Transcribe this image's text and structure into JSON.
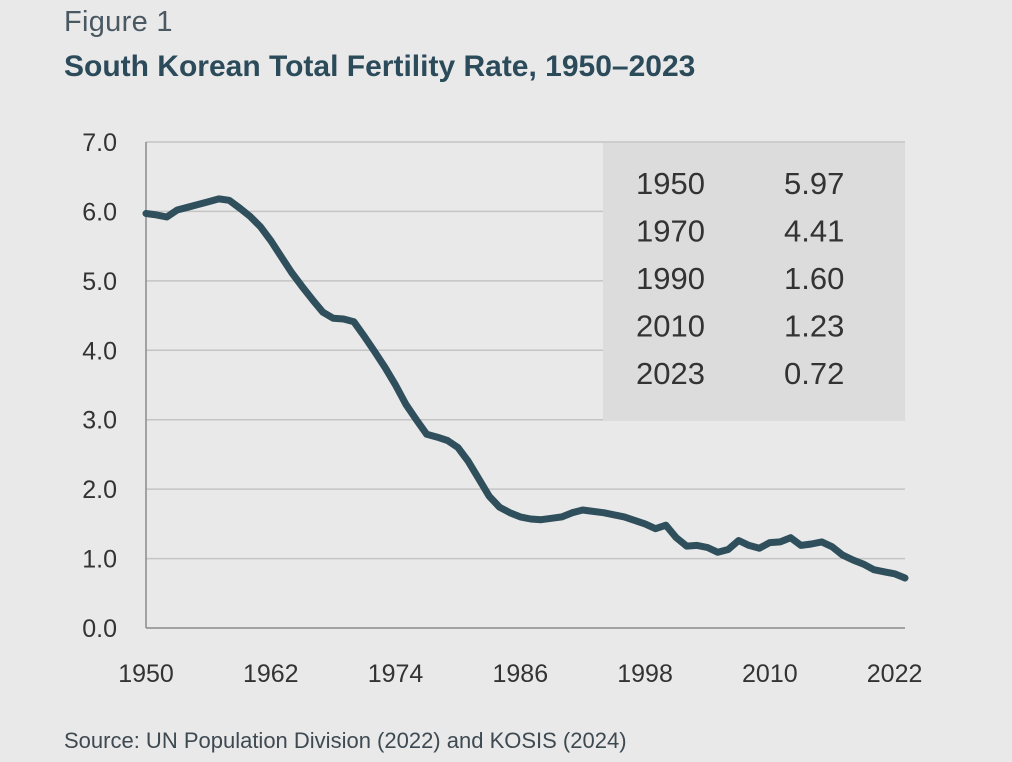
{
  "figure_label": "Figure 1",
  "title": "South Korean Total Fertility Rate, 1950–2023",
  "source": "Source: UN Population Division (2022) and KOSIS (2024)",
  "colors": {
    "background": "#e9e9e9",
    "line": "#2f4f5c",
    "grid": "#c4c4c4",
    "inset_table_bg": "#dcdcdc",
    "axis": "#8a8a8a"
  },
  "chart_data": {
    "type": "line",
    "title": "South Korean Total Fertility Rate, 1950–2023",
    "xlabel": "",
    "ylabel": "",
    "xlim": [
      1950,
      2023
    ],
    "ylim": [
      0,
      7
    ],
    "grid": true,
    "x_ticks": [
      1950,
      1962,
      1974,
      1986,
      1998,
      2010,
      2022
    ],
    "y_ticks": [
      0,
      1,
      2,
      3,
      4,
      5,
      6,
      7
    ],
    "y_tick_labels": [
      "0.0",
      "1.0",
      "2.0",
      "3.0",
      "4.0",
      "5.0",
      "6.0",
      "7.0"
    ],
    "series": [
      {
        "x": [
          1950,
          1951,
          1952,
          1953,
          1954,
          1955,
          1956,
          1957,
          1958,
          1959,
          1960,
          1961,
          1962,
          1963,
          1964,
          1965,
          1966,
          1967,
          1968,
          1969,
          1970,
          1971,
          1972,
          1973,
          1974,
          1975,
          1976,
          1977,
          1978,
          1979,
          1980,
          1981,
          1982,
          1983,
          1984,
          1985,
          1986,
          1987,
          1988,
          1989,
          1990,
          1991,
          1992,
          1993,
          1994,
          1995,
          1996,
          1997,
          1998,
          1999,
          2000,
          2001,
          2002,
          2003,
          2004,
          2005,
          2006,
          2007,
          2008,
          2009,
          2010,
          2011,
          2012,
          2013,
          2014,
          2015,
          2016,
          2017,
          2018,
          2019,
          2020,
          2021,
          2022,
          2023
        ],
        "y": [
          5.97,
          5.95,
          5.92,
          6.02,
          6.06,
          6.1,
          6.14,
          6.18,
          6.16,
          6.05,
          5.93,
          5.78,
          5.58,
          5.35,
          5.12,
          4.92,
          4.73,
          4.55,
          4.46,
          4.45,
          4.41,
          4.2,
          3.98,
          3.75,
          3.5,
          3.22,
          3.0,
          2.79,
          2.75,
          2.7,
          2.6,
          2.4,
          2.15,
          1.9,
          1.74,
          1.66,
          1.6,
          1.57,
          1.56,
          1.58,
          1.6,
          1.66,
          1.7,
          1.68,
          1.66,
          1.63,
          1.6,
          1.55,
          1.5,
          1.43,
          1.48,
          1.3,
          1.18,
          1.19,
          1.16,
          1.09,
          1.13,
          1.26,
          1.19,
          1.15,
          1.23,
          1.24,
          1.3,
          1.19,
          1.21,
          1.24,
          1.17,
          1.05,
          0.98,
          0.92,
          0.84,
          0.81,
          0.78,
          0.72
        ]
      }
    ],
    "inset_table": [
      {
        "year": "1950",
        "value": "5.97"
      },
      {
        "year": "1970",
        "value": "4.41"
      },
      {
        "year": "1990",
        "value": "1.60"
      },
      {
        "year": "2010",
        "value": "1.23"
      },
      {
        "year": "2023",
        "value": "0.72"
      }
    ]
  }
}
